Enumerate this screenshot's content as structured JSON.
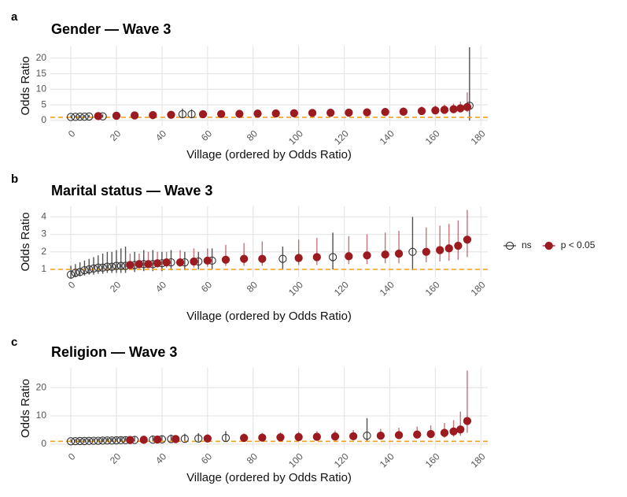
{
  "chart_data": [
    {
      "type": "scatter",
      "panel_label": "a",
      "title": "Gender — Wave 3",
      "x_label": "Village (ordered by Odds Ratio)",
      "y_label": "Odds Ratio",
      "xlim": [
        -9,
        183
      ],
      "xticks": [
        0,
        20,
        40,
        60,
        80,
        100,
        120,
        140,
        160,
        180
      ],
      "ylim": [
        -1.8,
        24
      ],
      "yticks": [
        0,
        5,
        10,
        15,
        20
      ],
      "grid": true,
      "reference_line": 1,
      "reference_color": "#f0a020",
      "series": [
        {
          "name": "ns",
          "color": "#333333",
          "filled": false,
          "x": [
            0,
            2,
            4,
            6,
            8,
            14,
            49,
            53,
            175
          ],
          "values": [
            1.1,
            1.15,
            1.2,
            1.2,
            1.25,
            1.3,
            2.0,
            2.0,
            4.7
          ],
          "lower": [
            0.7,
            0.8,
            0.8,
            0.8,
            0.9,
            0.9,
            0.8,
            0.9,
            0.0
          ],
          "upper": [
            1.6,
            1.6,
            1.7,
            1.7,
            1.8,
            1.9,
            3.8,
            3.6,
            23.5
          ]
        },
        {
          "name": "p < 0.05",
          "color": "#9b1b20",
          "filled": true,
          "x": [
            12,
            20,
            28,
            36,
            44,
            58,
            66,
            74,
            82,
            90,
            98,
            106,
            114,
            122,
            130,
            138,
            146,
            154,
            160,
            164,
            168,
            171,
            174
          ],
          "values": [
            1.4,
            1.5,
            1.6,
            1.7,
            1.8,
            2.0,
            2.05,
            2.1,
            2.2,
            2.25,
            2.3,
            2.4,
            2.45,
            2.5,
            2.6,
            2.7,
            2.8,
            3.0,
            3.2,
            3.4,
            3.6,
            3.9,
            4.3
          ],
          "lower": [
            0.9,
            1.0,
            1.0,
            1.1,
            1.2,
            1.3,
            1.3,
            1.4,
            1.4,
            1.5,
            1.5,
            1.6,
            1.6,
            1.6,
            1.7,
            1.8,
            1.8,
            2.0,
            2.1,
            2.2,
            2.3,
            2.5,
            2.7
          ],
          "upper": [
            2.1,
            2.2,
            2.4,
            2.5,
            2.7,
            3.0,
            3.0,
            3.1,
            3.3,
            3.3,
            3.4,
            3.6,
            3.6,
            3.7,
            3.9,
            4.0,
            4.2,
            4.5,
            4.8,
            5.1,
            5.4,
            6.0,
            9.0
          ]
        }
      ]
    },
    {
      "type": "scatter",
      "panel_label": "b",
      "title": "Marital status — Wave 3",
      "x_label": "Village (ordered by Odds Ratio)",
      "y_label": "Odds Ratio",
      "xlim": [
        -9,
        183
      ],
      "xticks": [
        0,
        20,
        40,
        60,
        80,
        100,
        120,
        140,
        160,
        180
      ],
      "ylim": [
        0.55,
        4.6
      ],
      "yticks": [
        1,
        2,
        3,
        4
      ],
      "grid": true,
      "reference_line": 1,
      "reference_color": "#f0a020",
      "series": [
        {
          "name": "ns",
          "color": "#333333",
          "filled": false,
          "x": [
            0,
            2,
            4,
            6,
            8,
            10,
            12,
            14,
            16,
            18,
            20,
            22,
            24,
            28,
            32,
            36,
            40,
            44,
            50,
            56,
            62,
            93,
            115,
            150
          ],
          "values": [
            0.7,
            0.8,
            0.85,
            0.95,
            1.0,
            1.05,
            1.1,
            1.1,
            1.15,
            1.15,
            1.2,
            1.2,
            1.2,
            1.25,
            1.3,
            1.3,
            1.35,
            1.4,
            1.4,
            1.45,
            1.5,
            1.6,
            1.7,
            2.0
          ],
          "lower": [
            0.5,
            0.55,
            0.6,
            0.65,
            0.7,
            0.7,
            0.75,
            0.75,
            0.8,
            0.8,
            0.8,
            0.8,
            0.8,
            0.85,
            0.9,
            0.9,
            0.9,
            0.95,
            0.95,
            1.0,
            1.0,
            1.0,
            1.0,
            0.95
          ],
          "upper": [
            1.2,
            1.3,
            1.4,
            1.5,
            1.6,
            1.7,
            1.8,
            1.9,
            2.0,
            2.0,
            2.1,
            2.2,
            2.3,
            2.0,
            2.1,
            2.1,
            2.0,
            2.1,
            2.0,
            2.0,
            2.2,
            2.3,
            3.1,
            4.0
          ]
        },
        {
          "name": "p < 0.05",
          "color": "#9b1b20",
          "filled": true,
          "x": [
            26,
            30,
            34,
            38,
            42,
            48,
            54,
            60,
            68,
            76,
            84,
            100,
            108,
            122,
            130,
            138,
            144,
            156,
            162,
            166,
            170,
            174
          ],
          "values": [
            1.25,
            1.3,
            1.3,
            1.35,
            1.4,
            1.4,
            1.45,
            1.5,
            1.55,
            1.6,
            1.6,
            1.65,
            1.7,
            1.75,
            1.8,
            1.85,
            1.9,
            2.0,
            2.1,
            2.2,
            2.35,
            2.7
          ],
          "lower": [
            1.05,
            1.05,
            1.1,
            1.1,
            1.1,
            1.15,
            1.1,
            1.15,
            1.2,
            1.2,
            1.2,
            1.25,
            1.25,
            1.3,
            1.3,
            1.35,
            1.35,
            1.4,
            1.45,
            1.5,
            1.55,
            1.7
          ],
          "upper": [
            1.9,
            1.9,
            2.0,
            2.0,
            2.0,
            2.1,
            2.2,
            2.2,
            2.4,
            2.5,
            2.6,
            2.7,
            2.8,
            2.9,
            3.0,
            3.1,
            3.2,
            3.4,
            3.5,
            3.6,
            3.8,
            4.4
          ]
        }
      ]
    },
    {
      "type": "scatter",
      "panel_label": "c",
      "title": "Religion — Wave 3",
      "x_label": "Village (ordered by Odds Ratio)",
      "y_label": "Odds Ratio",
      "xlim": [
        -9,
        183
      ],
      "xticks": [
        0,
        20,
        40,
        60,
        80,
        100,
        120,
        140,
        160,
        180
      ],
      "ylim": [
        -1.7,
        27
      ],
      "yticks": [
        0,
        10,
        20
      ],
      "grid": true,
      "reference_line": 1,
      "reference_color": "#f0a020",
      "series": [
        {
          "name": "ns",
          "color": "#333333",
          "filled": false,
          "x": [
            0,
            2,
            4,
            6,
            8,
            10,
            12,
            14,
            16,
            18,
            20,
            22,
            24,
            28,
            36,
            40,
            44,
            50,
            56,
            68,
            130
          ],
          "values": [
            1.0,
            1.05,
            1.1,
            1.1,
            1.15,
            1.2,
            1.2,
            1.25,
            1.3,
            1.3,
            1.35,
            1.4,
            1.4,
            1.5,
            1.6,
            1.7,
            1.8,
            1.9,
            2.0,
            2.2,
            3.0
          ],
          "lower": [
            0.6,
            0.6,
            0.6,
            0.6,
            0.7,
            0.7,
            0.7,
            0.7,
            0.8,
            0.8,
            0.8,
            0.8,
            0.8,
            0.9,
            0.9,
            0.9,
            1.0,
            1.0,
            1.0,
            1.1,
            1.0
          ],
          "upper": [
            1.7,
            1.8,
            1.9,
            2.0,
            2.0,
            2.1,
            2.1,
            2.2,
            2.3,
            2.3,
            2.4,
            2.5,
            2.5,
            2.7,
            2.9,
            3.1,
            3.4,
            3.7,
            3.9,
            4.6,
            9.2
          ]
        },
        {
          "name": "p < 0.05",
          "color": "#9b1b20",
          "filled": true,
          "x": [
            26,
            32,
            38,
            46,
            60,
            76,
            84,
            92,
            100,
            108,
            116,
            124,
            136,
            144,
            152,
            158,
            164,
            168,
            171,
            174
          ],
          "values": [
            1.45,
            1.55,
            1.65,
            1.8,
            2.0,
            2.2,
            2.3,
            2.4,
            2.5,
            2.6,
            2.7,
            2.8,
            3.0,
            3.2,
            3.4,
            3.6,
            4.0,
            4.5,
            5.2,
            8.2
          ],
          "lower": [
            0.9,
            1.0,
            1.0,
            1.1,
            1.2,
            1.3,
            1.4,
            1.4,
            1.5,
            1.5,
            1.6,
            1.6,
            1.8,
            1.9,
            2.0,
            2.1,
            2.3,
            2.6,
            3.0,
            4.0
          ],
          "upper": [
            2.6,
            2.8,
            2.9,
            3.2,
            3.5,
            3.8,
            4.0,
            4.2,
            4.4,
            4.6,
            4.8,
            5.0,
            5.4,
            5.8,
            6.2,
            6.6,
            7.5,
            8.5,
            11.5,
            26
          ]
        }
      ]
    }
  ]
}
